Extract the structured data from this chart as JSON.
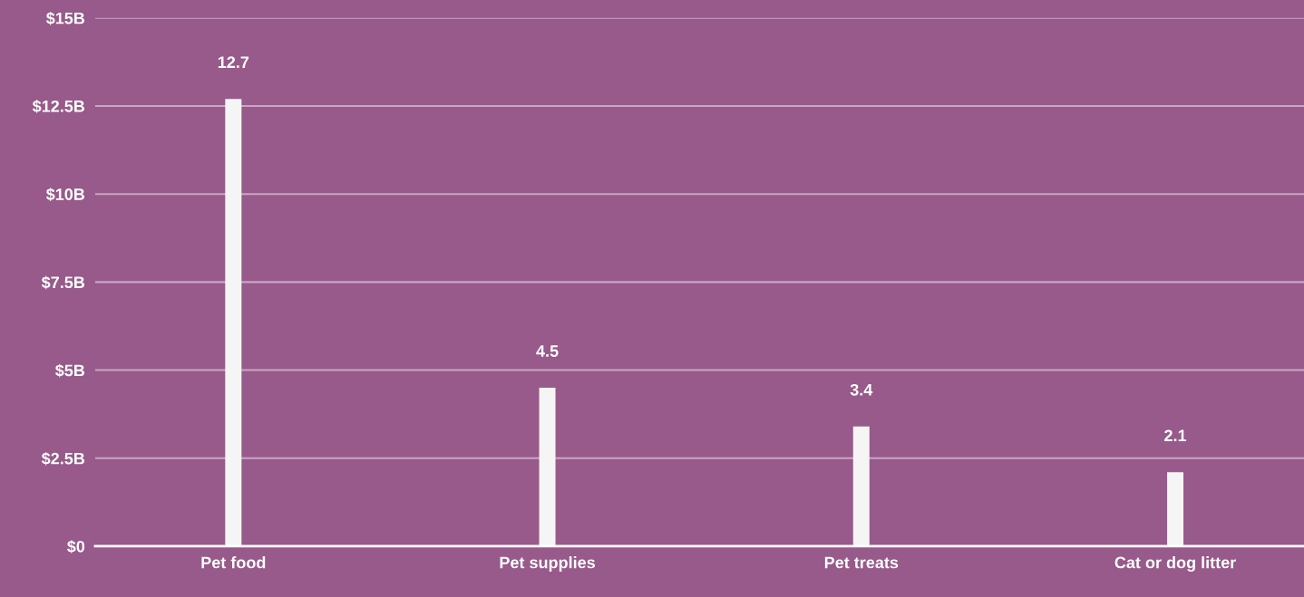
{
  "chart_data": {
    "type": "bar",
    "categories": [
      "Pet food",
      "Pet supplies",
      "Pet treats",
      "Cat or dog litter"
    ],
    "values": [
      12.7,
      4.5,
      3.4,
      2.1
    ],
    "color": "#f5f5f5",
    "ylim": [
      0,
      15
    ],
    "yticks": [
      {
        "value": 0,
        "label": "$0"
      },
      {
        "value": 2.5,
        "label": "$2.5B"
      },
      {
        "value": 5,
        "label": "$5B"
      },
      {
        "value": 7.5,
        "label": "$7.5B"
      },
      {
        "value": 10,
        "label": "$10B"
      },
      {
        "value": 12.5,
        "label": "$12.5B"
      },
      {
        "value": 15,
        "label": "$15B"
      }
    ],
    "grid": "y",
    "data_labels": true
  }
}
